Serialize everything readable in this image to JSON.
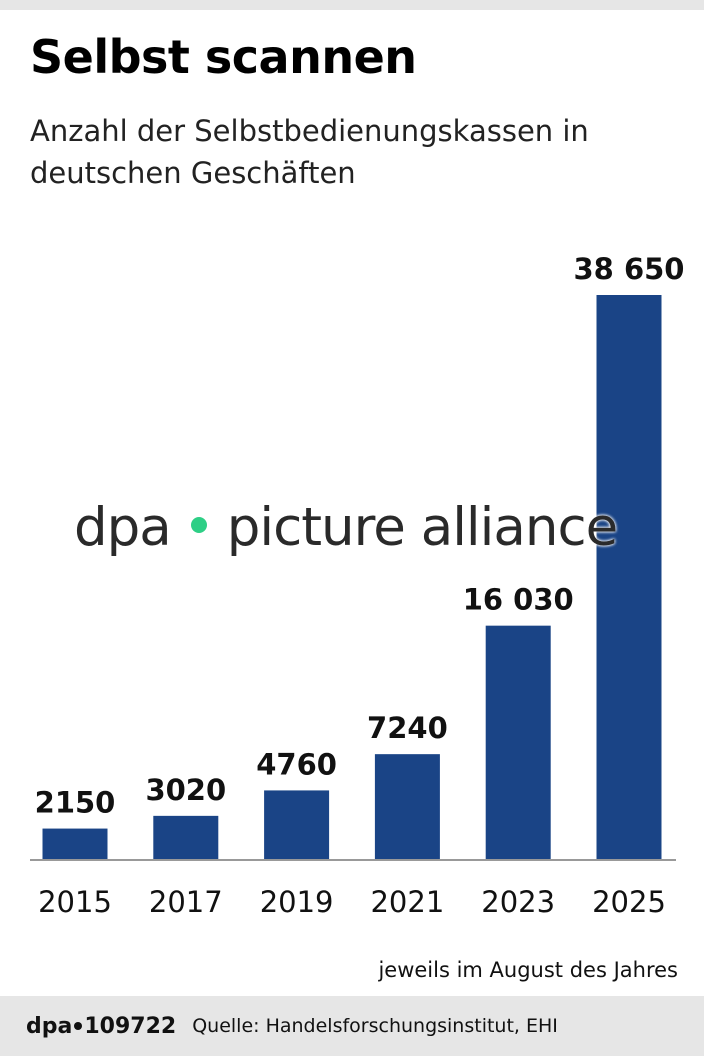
{
  "title": "Selbst scannen",
  "subtitle": "Anzahl der Selbstbedienungskassen in deutschen Geschäften",
  "watermark": {
    "left": "dpa",
    "right": "picture alliance"
  },
  "note": "jeweils im August des Jahres",
  "footer": {
    "brand_left": "dpa",
    "brand_id": "109722",
    "source": "Quelle: Handelsforschungsinstitut, EHI"
  },
  "colors": {
    "bar": "#1a4486",
    "axis": "#999999"
  },
  "chart_data": {
    "type": "bar",
    "categories": [
      "2015",
      "2017",
      "2019",
      "2021",
      "2023",
      "2025"
    ],
    "values": [
      2150,
      3020,
      4760,
      7240,
      16030,
      38650
    ],
    "value_labels": [
      "2150",
      "3020",
      "4760",
      "7240",
      "16 030",
      "38 650"
    ],
    "ylim": [
      0,
      38650
    ],
    "grid": false
  }
}
